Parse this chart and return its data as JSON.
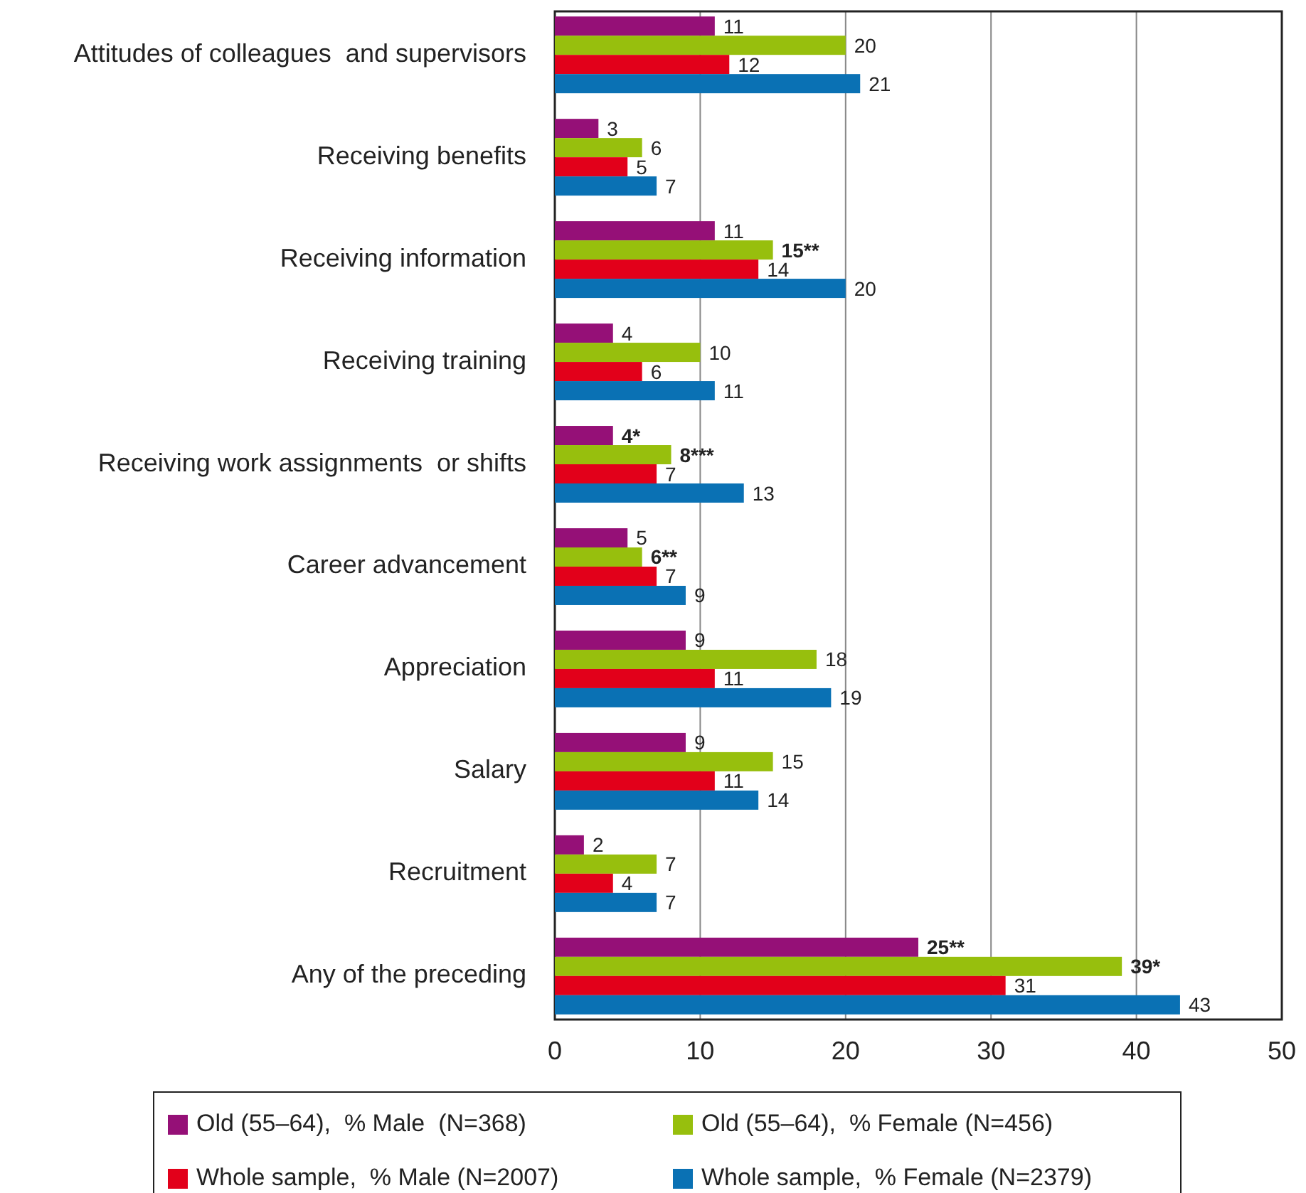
{
  "chart_data": {
    "type": "bar",
    "orientation": "horizontal",
    "categories": [
      "Attitudes of colleagues  and supervisors",
      "Receiving benefits",
      "Receiving information",
      "Receiving training",
      "Receiving work assignments  or shifts",
      "Career advancement",
      "Appreciation",
      "Salary",
      "Recruitment",
      "Any of the preceding"
    ],
    "series": [
      {
        "name": "Old (55–64),  % Male  (N=368)",
        "color": "#951077",
        "values": [
          11,
          3,
          11,
          4,
          4,
          5,
          9,
          9,
          2,
          25
        ],
        "value_labels": [
          "11",
          "3",
          "11",
          "4",
          "4*",
          "5",
          "9",
          "9",
          "2",
          "25**"
        ]
      },
      {
        "name": "Old (55–64),  % Female (N=456)",
        "color": "#97bf0d",
        "values": [
          20,
          6,
          15,
          10,
          8,
          6,
          18,
          15,
          7,
          39
        ],
        "value_labels": [
          "20",
          "6",
          "15**",
          "10",
          "8***",
          "6**",
          "18",
          "15",
          "7",
          "39*"
        ]
      },
      {
        "name": "Whole sample,  % Male (N=2007)",
        "color": "#e2001a",
        "values": [
          12,
          5,
          14,
          6,
          7,
          7,
          11,
          11,
          4,
          31
        ],
        "value_labels": [
          "12",
          "5",
          "14",
          "6",
          "7",
          "7",
          "11",
          "11",
          "4",
          "31"
        ]
      },
      {
        "name": "Whole sample,  % Female (N=2379)",
        "color": "#0a71b4",
        "values": [
          21,
          7,
          20,
          11,
          13,
          9,
          19,
          14,
          7,
          43
        ],
        "value_labels": [
          "21",
          "7",
          "20",
          "11",
          "13",
          "9",
          "19",
          "14",
          "7",
          "43"
        ]
      }
    ],
    "xlim": [
      0,
      50
    ],
    "xticks": [
      0,
      10,
      20,
      30,
      40,
      50
    ],
    "grid": "x",
    "legend": "bottom"
  }
}
